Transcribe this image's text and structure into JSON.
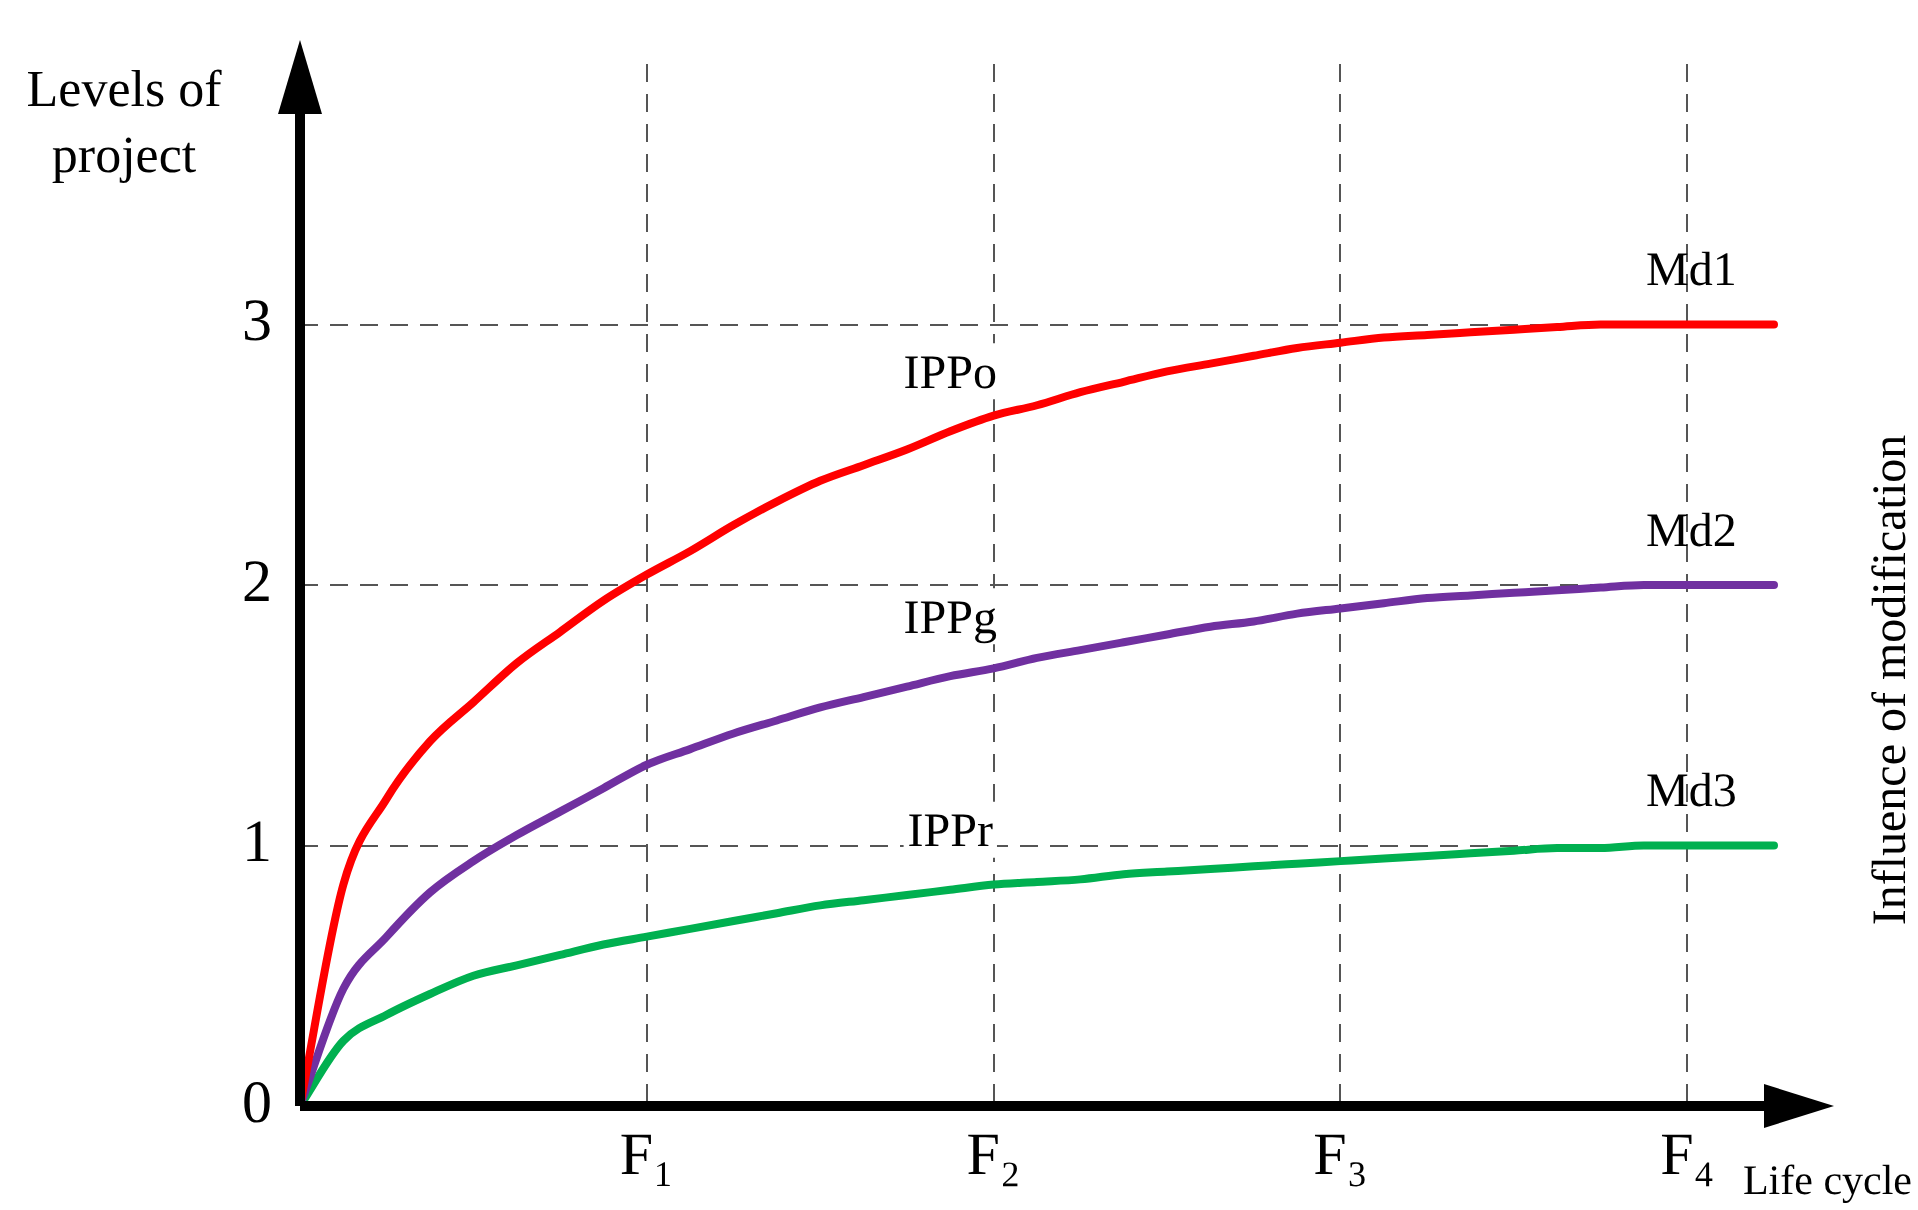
{
  "chart_data": {
    "type": "line",
    "xlabel": "Life cycle",
    "ylabel": "Levels of project",
    "y2label": "Influence of modification",
    "categories": [
      null,
      null,
      null,
      null,
      null,
      null,
      null,
      null,
      "F₁",
      null,
      null,
      null,
      null,
      null,
      null,
      null,
      "F₂",
      null,
      null,
      null,
      null,
      null,
      null,
      null,
      "F₃",
      null,
      null,
      null,
      null,
      null,
      null,
      null,
      "F₄",
      null,
      null
    ],
    "series": [
      {
        "name": "Md1",
        "color": "#ff0000",
        "values": [
          0,
          0.85,
          1.18,
          1.4,
          1.55,
          1.7,
          1.82,
          1.94,
          2.04,
          2.13,
          2.23,
          2.32,
          2.4,
          2.46,
          2.52,
          2.59,
          2.65,
          2.69,
          2.74,
          2.78,
          2.82,
          2.85,
          2.88,
          2.91,
          2.93,
          2.95,
          2.96,
          2.97,
          2.98,
          2.99,
          3.0,
          3.0,
          3.0,
          3.0,
          3.0
        ]
      },
      {
        "name": "Md2",
        "color": "#7030a0",
        "values": [
          0,
          0.45,
          0.65,
          0.82,
          0.94,
          1.04,
          1.13,
          1.22,
          1.31,
          1.37,
          1.43,
          1.48,
          1.53,
          1.57,
          1.61,
          1.65,
          1.68,
          1.72,
          1.75,
          1.78,
          1.81,
          1.84,
          1.86,
          1.89,
          1.91,
          1.93,
          1.95,
          1.96,
          1.97,
          1.98,
          1.99,
          2.0,
          2.0,
          2.0,
          2.0
        ]
      },
      {
        "name": "Md3",
        "color": "#00b050",
        "values": [
          0,
          0.25,
          0.35,
          0.43,
          0.5,
          0.54,
          0.58,
          0.62,
          0.65,
          0.68,
          0.71,
          0.74,
          0.77,
          0.79,
          0.81,
          0.83,
          0.85,
          0.86,
          0.87,
          0.89,
          0.9,
          0.91,
          0.92,
          0.93,
          0.94,
          0.95,
          0.96,
          0.97,
          0.98,
          0.99,
          0.99,
          1.0,
          1.0,
          1.0,
          1.0
        ]
      }
    ],
    "ylim": [
      0,
      4
    ],
    "yticks": [
      0,
      1,
      2,
      3
    ],
    "grid": true,
    "marker": "none",
    "line_style": "solid",
    "legend": false,
    "annotations": [
      "IPPo",
      "IPPg",
      "IPPr"
    ]
  }
}
